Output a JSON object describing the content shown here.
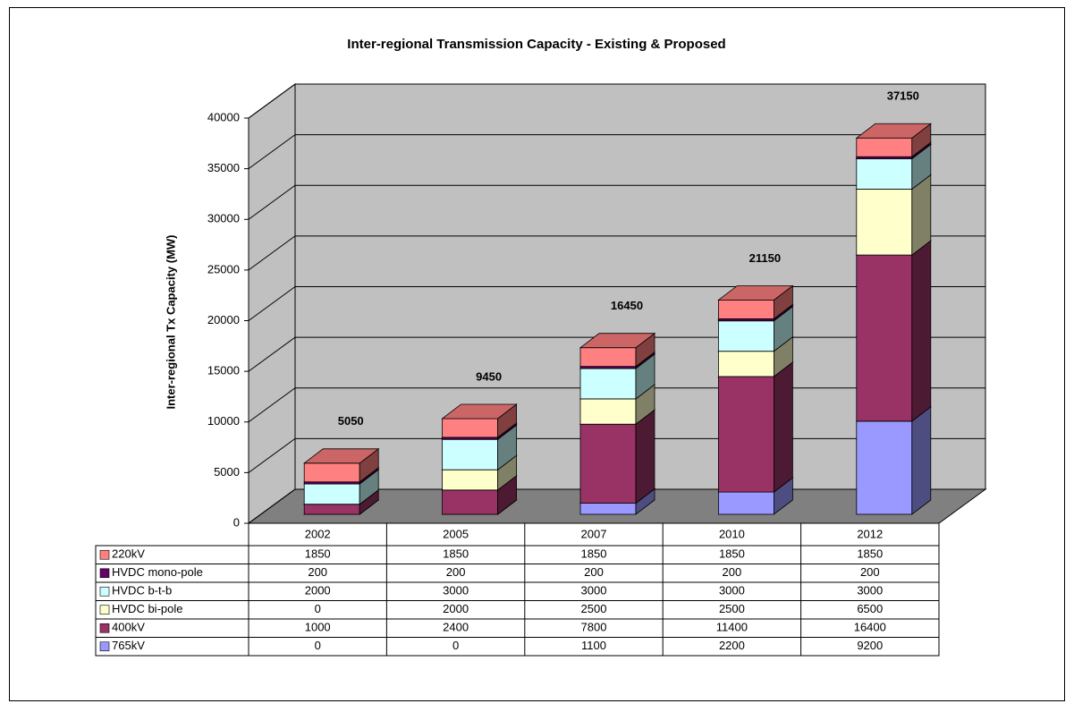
{
  "chart_data": {
    "type": "bar3d-stacked",
    "title": "Inter-regional Transmission Capacity - Existing & Proposed",
    "y_label": "Inter-regional Tx Capacity (MW)",
    "categories": [
      "2002",
      "2005",
      "2007",
      "2010",
      "2012"
    ],
    "series": [
      {
        "name": "765kV",
        "color": "#9999ff",
        "values": [
          0,
          0,
          1100,
          2200,
          9200
        ]
      },
      {
        "name": "400kV",
        "color": "#993366",
        "values": [
          1000,
          2400,
          7800,
          11400,
          16400
        ]
      },
      {
        "name": "HVDC bi-pole",
        "color": "#ffffcc",
        "values": [
          0,
          2000,
          2500,
          2500,
          6500
        ]
      },
      {
        "name": "HVDC b-t-b",
        "color": "#ccffff",
        "values": [
          2000,
          3000,
          3000,
          3000,
          3000
        ]
      },
      {
        "name": "HVDC mono-pole",
        "color": "#660066",
        "values": [
          200,
          200,
          200,
          200,
          200
        ]
      },
      {
        "name": "220kV",
        "color": "#ff8080",
        "values": [
          1850,
          1850,
          1850,
          1850,
          1850
        ]
      }
    ],
    "totals": [
      5050,
      9450,
      16450,
      21150,
      37150
    ],
    "ylim": [
      0,
      40000
    ],
    "yticks": [
      0,
      5000,
      10000,
      15000,
      20000,
      25000,
      30000,
      35000,
      40000
    ],
    "grid": true
  }
}
